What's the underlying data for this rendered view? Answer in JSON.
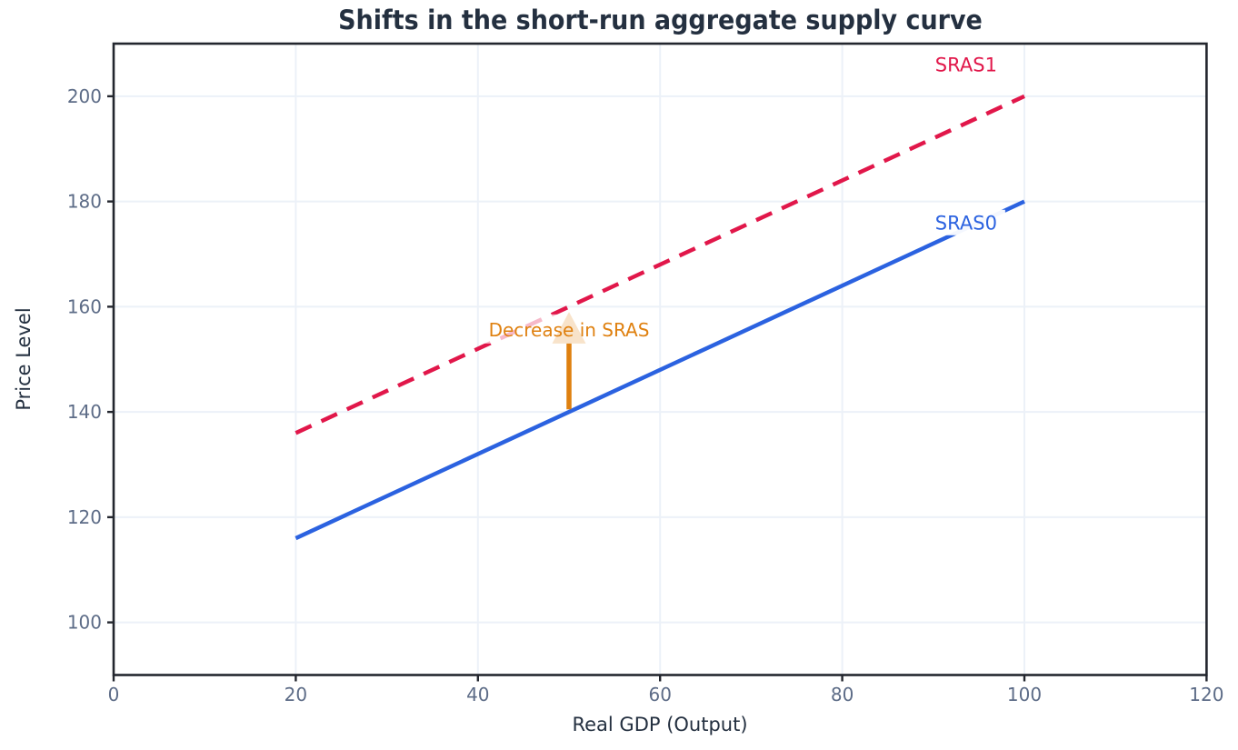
{
  "chart_data": {
    "type": "line",
    "title": "Shifts in the short-run aggregate supply curve",
    "xlabel": "Real GDP (Output)",
    "ylabel": "Price Level",
    "xlim": [
      0,
      120
    ],
    "ylim": [
      90,
      210
    ],
    "xticks": [
      0,
      20,
      40,
      60,
      80,
      100,
      120
    ],
    "yticks": [
      100,
      120,
      140,
      160,
      180,
      200
    ],
    "grid": true,
    "legend_position": "inline-labels",
    "series": [
      {
        "name": "SRAS0",
        "style": "solid",
        "color": "#2b62e0",
        "x": [
          20,
          100
        ],
        "y": [
          116,
          180
        ],
        "label": {
          "text": "SRAS0",
          "x": 93.6,
          "y": 176
        }
      },
      {
        "name": "SRAS1",
        "style": "dashed",
        "color": "#e1174a",
        "x": [
          20,
          100
        ],
        "y": [
          136,
          200
        ],
        "label": {
          "text": "SRAS1",
          "x": 93.6,
          "y": 206
        }
      }
    ],
    "annotation": {
      "text": "Decrease in SRAS",
      "color": "#df800f",
      "text_x": 50,
      "text_y": 155.6,
      "arrow": {
        "x": 50,
        "from": 140.5,
        "to": 159,
        "head_length": 6,
        "head_width": 3.7
      }
    },
    "style_colors": {
      "title": "#243040",
      "axis_label": "#243040",
      "tick_label": "#5d6c87",
      "spine": "#23262e",
      "grid": "#ecf1f8",
      "background": "#ffffff",
      "label_box": "#ffffff"
    }
  }
}
